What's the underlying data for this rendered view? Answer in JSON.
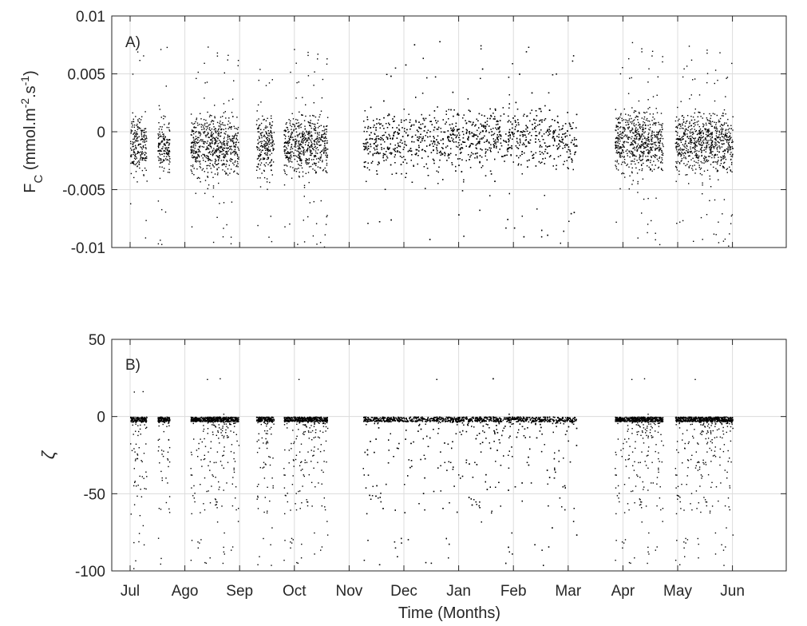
{
  "chart_data": [
    {
      "type": "scatter",
      "panel_label": "A)",
      "ylabel_main": "F",
      "ylabel_sub": "C",
      "ylabel_unit": " (mmol.m",
      "ylabel_exp1": "-2",
      "ylabel_mid": ".s",
      "ylabel_exp2": "-1",
      "ylabel_close": ")",
      "ylim": [
        -0.01,
        0.01
      ],
      "yticks": [
        -0.01,
        -0.005,
        0,
        0.005,
        0.01
      ],
      "ytick_labels": [
        "-0.01",
        "-0.005",
        "0",
        "0.005",
        "0.01"
      ],
      "grid": true,
      "marker_color": "#000000",
      "data_segments_months": [
        [
          0.0,
          0.3
        ],
        [
          0.5,
          0.72
        ],
        [
          1.1,
          1.98
        ],
        [
          2.3,
          2.62
        ],
        [
          2.8,
          3.6
        ],
        [
          4.25,
          8.15
        ],
        [
          8.85,
          9.73
        ],
        [
          9.95,
          11.0
        ]
      ],
      "baseline_by_month": [
        [
          0,
          -0.0011
        ],
        [
          3,
          -0.0011
        ],
        [
          4.3,
          -0.0008
        ],
        [
          6,
          -0.0006
        ],
        [
          7,
          -0.0003
        ],
        [
          8,
          -0.0007
        ],
        [
          9,
          -0.0007
        ],
        [
          11,
          -0.0009
        ]
      ],
      "typical_spread": 0.0015,
      "outlier_range": [
        -0.01,
        0.01
      ]
    },
    {
      "type": "scatter",
      "panel_label": "B)",
      "ylabel": "ζ",
      "ylim": [
        -100,
        50
      ],
      "yticks": [
        -100,
        -50,
        0,
        50
      ],
      "ytick_labels": [
        "-100",
        "-50",
        "0",
        "50"
      ],
      "grid": true,
      "marker_color": "#000000",
      "data_segments_months": [
        [
          0.0,
          0.3
        ],
        [
          0.5,
          0.72
        ],
        [
          1.1,
          1.98
        ],
        [
          2.3,
          2.62
        ],
        [
          2.8,
          3.6
        ],
        [
          4.25,
          8.15
        ],
        [
          8.85,
          9.73
        ],
        [
          9.95,
          11.0
        ]
      ],
      "dense_band": [
        -3,
        0
      ],
      "tail_min": -100,
      "positive_outliers_max": 25
    }
  ],
  "shared_x": {
    "label": "Time (Months)",
    "ticks": [
      "Jul",
      "Ago",
      "Sep",
      "Oct",
      "Nov",
      "Dec",
      "Jan",
      "Feb",
      "Mar",
      "Apr",
      "May",
      "Jun"
    ],
    "xlim_months": [
      0,
      11
    ]
  }
}
